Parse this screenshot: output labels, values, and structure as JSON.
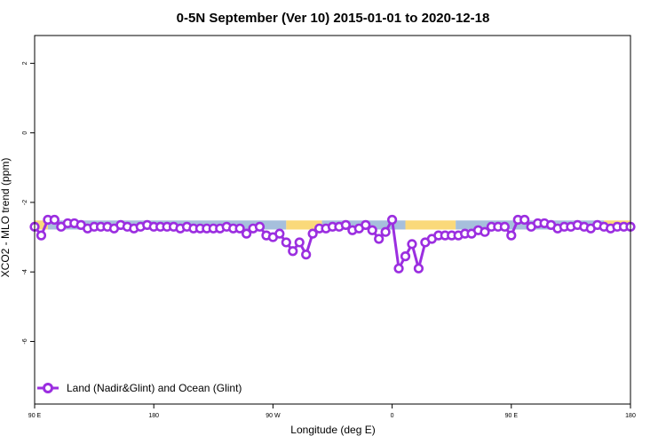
{
  "chart_data": {
    "type": "line",
    "title": "0-5N September (Ver 10)   2015-01-01 to 2020-12-18",
    "xlabel": "Longitude (deg E)",
    "ylabel": "XCO2 - MLO trend (ppm)",
    "x_ticks": [
      {
        "value": 90,
        "label": "90 E"
      },
      {
        "value": 180,
        "label": "180"
      },
      {
        "value": 270,
        "label": "90 W"
      },
      {
        "value": 360,
        "label": "0"
      },
      {
        "value": 450,
        "label": "90 E"
      },
      {
        "value": 540,
        "label": "180"
      }
    ],
    "y_ticks": [
      2,
      0,
      -2,
      -4,
      -6
    ],
    "xlim": [
      90,
      540
    ],
    "ylim": [
      -7.8,
      2.8
    ],
    "legend": {
      "position": "bottom-left"
    },
    "background_band": {
      "y_range": [
        -2.78,
        -2.52
      ],
      "segments": [
        {
          "x0": 90,
          "x1": 100,
          "color": "#fad97a"
        },
        {
          "x0": 100,
          "x1": 280,
          "color": "#a6bfdc"
        },
        {
          "x0": 280,
          "x1": 307,
          "color": "#fad97a"
        },
        {
          "x0": 307,
          "x1": 370,
          "color": "#a6bfdc"
        },
        {
          "x0": 370,
          "x1": 408,
          "color": "#fad97a"
        },
        {
          "x0": 408,
          "x1": 520,
          "color": "#a6bfdc"
        },
        {
          "x0": 520,
          "x1": 540,
          "color": "#fad97a"
        }
      ]
    },
    "series": [
      {
        "name": "Land (Nadir&Glint) and Ocean (Glint)",
        "color": "#9b2ee0",
        "x": [
          90,
          95,
          100,
          105,
          110,
          115,
          120,
          125,
          130,
          135,
          140,
          145,
          150,
          155,
          160,
          165,
          170,
          175,
          180,
          185,
          190,
          195,
          200,
          205,
          210,
          215,
          220,
          225,
          230,
          235,
          240,
          245,
          250,
          255,
          260,
          265,
          270,
          275,
          280,
          285,
          290,
          295,
          300,
          305,
          310,
          315,
          320,
          325,
          330,
          335,
          340,
          345,
          350,
          355,
          360,
          365,
          370,
          375,
          380,
          385,
          390,
          395,
          400,
          405,
          410,
          415,
          420,
          425,
          430,
          435,
          440,
          445,
          450,
          455,
          460,
          465,
          470,
          475,
          480,
          485,
          490,
          495,
          500,
          505,
          510,
          515,
          520,
          525,
          530,
          535,
          540
        ],
        "y": [
          -2.7,
          -2.95,
          -2.5,
          -2.5,
          -2.7,
          -2.6,
          -2.6,
          -2.65,
          -2.75,
          -2.7,
          -2.7,
          -2.7,
          -2.75,
          -2.65,
          -2.7,
          -2.75,
          -2.7,
          -2.65,
          -2.7,
          -2.7,
          -2.7,
          -2.7,
          -2.75,
          -2.7,
          -2.75,
          -2.75,
          -2.75,
          -2.75,
          -2.75,
          -2.7,
          -2.75,
          -2.75,
          -2.9,
          -2.75,
          -2.7,
          -2.95,
          -3.0,
          -2.9,
          -3.15,
          -3.4,
          -3.15,
          -3.5,
          -2.9,
          -2.75,
          -2.75,
          -2.7,
          -2.7,
          -2.65,
          -2.8,
          -2.75,
          -2.65,
          -2.8,
          -3.05,
          -2.85,
          -2.5,
          -3.9,
          -3.55,
          -3.2,
          -3.9,
          -3.15,
          -3.05,
          -2.95,
          -2.95,
          -2.95,
          -2.95,
          -2.9,
          -2.9,
          -2.8,
          -2.85,
          -2.7,
          -2.7,
          -2.7,
          -2.95,
          -2.5,
          -2.5,
          -2.7,
          -2.6,
          -2.6,
          -2.65,
          -2.75,
          -2.7,
          -2.7,
          -2.65,
          -2.7,
          -2.75,
          -2.65,
          -2.7,
          -2.75,
          -2.7,
          -2.7,
          -2.7
        ]
      }
    ]
  }
}
